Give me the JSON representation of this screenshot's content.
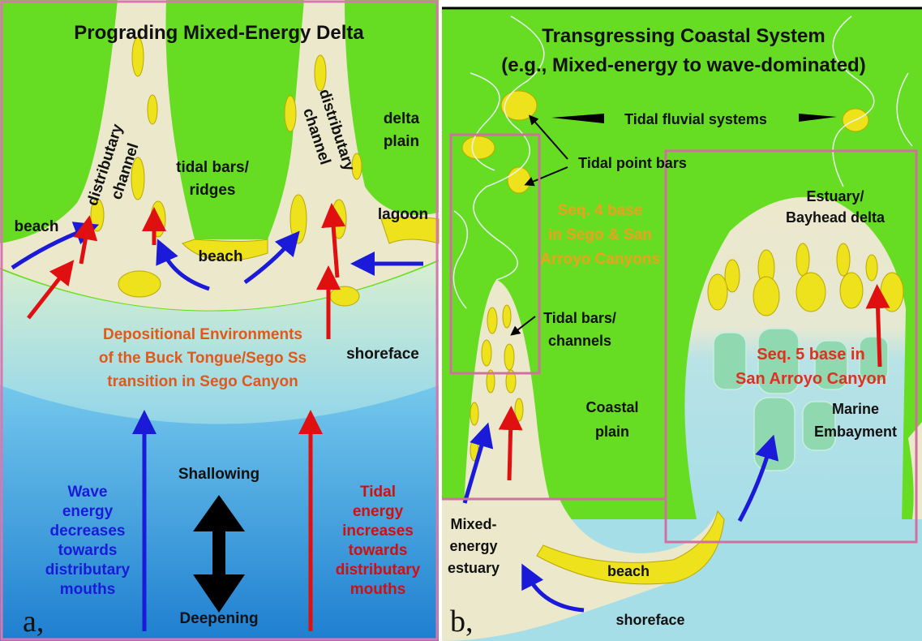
{
  "panel_a": {
    "title": "Prograding Mixed-Energy Delta",
    "tidal_bars": [
      "tidal bars/",
      "ridges"
    ],
    "delta_plain": [
      "delta",
      "plain"
    ],
    "channel_left": [
      "distributary",
      "channel"
    ],
    "channel_right": [
      "distributary",
      "channel"
    ],
    "beach_left": "beach",
    "beach_center": "beach",
    "lagoon": "lagoon",
    "caption": [
      "Depositional Environments",
      "of the Buck Tongue/Sego Ss",
      "transition in Sego Canyon"
    ],
    "shoreface": "shoreface",
    "shallowing": "Shallowing",
    "deepening": "Deepening",
    "wave": [
      "Wave",
      "energy",
      "decreases",
      "towards",
      "distributary",
      "mouths"
    ],
    "tidal": [
      "Tidal",
      "energy",
      "increases",
      "towards",
      "distributary",
      "mouths"
    ],
    "letter": "a,"
  },
  "panel_b": {
    "title": [
      "Transgressing Coastal System",
      "(e.g., Mixed-energy to wave-dominated)"
    ],
    "tidal_fluvial": "Tidal fluvial systems",
    "tidal_point_bars": "Tidal point bars",
    "seq4": [
      "Seq. 4 base",
      "in Sego & San",
      "Arroyo Canyons"
    ],
    "tidal_bars": [
      "Tidal bars/",
      "channels"
    ],
    "coastal_plain": [
      "Coastal",
      "plain"
    ],
    "estuary": [
      "Estuary/",
      "Bayhead delta"
    ],
    "seq5": [
      "Seq. 5 base in",
      "San Arroyo Canyon"
    ],
    "marine": [
      "Marine",
      "Embayment"
    ],
    "mixed_estuary": [
      "Mixed-",
      "energy",
      "estuary"
    ],
    "beach": "beach",
    "shoreface": "shoreface",
    "letter": "b,"
  }
}
